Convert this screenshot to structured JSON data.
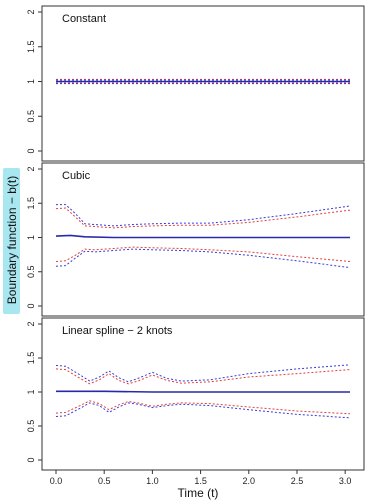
{
  "figure": {
    "ylabel": "Boundary function − b(t)",
    "xlabel": "Time (t)",
    "ylabel_highlight": "#a8e6f0",
    "colors": {
      "red": "#e0403a",
      "blue": "#3a3ad8",
      "solid": "#2a2aa8",
      "axis": "#333333"
    }
  },
  "chart_data": [
    {
      "type": "line",
      "title": "Constant",
      "xlim": [
        -0.1,
        3.05
      ],
      "ylim": [
        0,
        2
      ],
      "yticks": [
        "0",
        "0.5",
        "1",
        "1.5",
        "2"
      ],
      "xticks": [],
      "series": [
        {
          "style": "solid",
          "color": "blue",
          "x": [
            0,
            3.05
          ],
          "y": [
            1.0,
            1.0
          ]
        },
        {
          "style": "dashed",
          "color": "red",
          "x": [
            0,
            3.05
          ],
          "y": [
            1.03,
            1.03
          ]
        },
        {
          "style": "dashed",
          "color": "blue",
          "x": [
            0,
            3.05
          ],
          "y": [
            1.02,
            1.02
          ]
        },
        {
          "style": "dashed",
          "color": "red",
          "x": [
            0,
            3.05
          ],
          "y": [
            0.98,
            0.98
          ]
        },
        {
          "style": "dashed",
          "color": "blue",
          "x": [
            0,
            3.05
          ],
          "y": [
            0.97,
            0.97
          ]
        }
      ]
    },
    {
      "type": "line",
      "title": "Cubic",
      "xlim": [
        -0.1,
        3.05
      ],
      "ylim": [
        0,
        2
      ],
      "yticks": [
        "0",
        "0.5",
        "1",
        "1.5",
        "2"
      ],
      "xticks": [],
      "series": [
        {
          "style": "solid",
          "color": "blue",
          "x": [
            0,
            0.15,
            0.3,
            0.6,
            1.0,
            1.6,
            2.0,
            3.05
          ],
          "y": [
            1.02,
            1.03,
            1.01,
            1.0,
            1.0,
            1.0,
            1.0,
            1.0
          ]
        },
        {
          "style": "dashed",
          "color": "red",
          "x": [
            0,
            0.1,
            0.2,
            0.3,
            0.4,
            0.6,
            0.8,
            1.0,
            1.3,
            1.6,
            2.0,
            2.5,
            3.05
          ],
          "y": [
            1.42,
            1.43,
            1.3,
            1.17,
            1.16,
            1.14,
            1.16,
            1.17,
            1.18,
            1.18,
            1.22,
            1.3,
            1.4
          ]
        },
        {
          "style": "dashed",
          "color": "blue",
          "x": [
            0,
            0.1,
            0.2,
            0.3,
            0.4,
            0.6,
            0.8,
            1.0,
            1.3,
            1.6,
            2.0,
            2.5,
            3.05
          ],
          "y": [
            1.48,
            1.48,
            1.35,
            1.2,
            1.19,
            1.17,
            1.19,
            1.2,
            1.21,
            1.21,
            1.26,
            1.35,
            1.46
          ]
        },
        {
          "style": "dashed",
          "color": "red",
          "x": [
            0,
            0.1,
            0.2,
            0.3,
            0.4,
            0.6,
            0.8,
            1.0,
            1.3,
            1.6,
            2.0,
            2.5,
            3.05
          ],
          "y": [
            0.65,
            0.66,
            0.74,
            0.83,
            0.82,
            0.84,
            0.86,
            0.85,
            0.84,
            0.82,
            0.79,
            0.72,
            0.65
          ]
        },
        {
          "style": "dashed",
          "color": "blue",
          "x": [
            0,
            0.1,
            0.2,
            0.3,
            0.4,
            0.6,
            0.8,
            1.0,
            1.3,
            1.6,
            2.0,
            2.5,
            3.05
          ],
          "y": [
            0.58,
            0.59,
            0.7,
            0.8,
            0.79,
            0.81,
            0.83,
            0.82,
            0.81,
            0.79,
            0.74,
            0.66,
            0.56
          ]
        }
      ]
    },
    {
      "type": "line",
      "title": "Linear spline − 2 knots",
      "xlim": [
        -0.1,
        3.05
      ],
      "ylim": [
        0,
        2
      ],
      "yticks": [
        "0",
        "0.5",
        "1",
        "1.5",
        "2"
      ],
      "xticks": [
        "0.0",
        "0.5",
        "1.0",
        "1.5",
        "2.0",
        "2.5",
        "3.0"
      ],
      "series": [
        {
          "style": "solid",
          "color": "blue",
          "x": [
            0,
            0.5,
            1.0,
            1.6,
            2.0,
            3.05
          ],
          "y": [
            1.01,
            1.01,
            1.0,
            1.0,
            1.0,
            1.0
          ]
        },
        {
          "style": "dashed",
          "color": "red",
          "x": [
            0,
            0.1,
            0.25,
            0.35,
            0.45,
            0.55,
            0.65,
            0.75,
            0.85,
            1.0,
            1.15,
            1.3,
            1.6,
            2.0,
            2.5,
            3.05
          ],
          "y": [
            1.34,
            1.33,
            1.2,
            1.12,
            1.18,
            1.27,
            1.17,
            1.12,
            1.16,
            1.25,
            1.17,
            1.13,
            1.15,
            1.22,
            1.27,
            1.33
          ]
        },
        {
          "style": "dashed",
          "color": "blue",
          "x": [
            0,
            0.1,
            0.25,
            0.35,
            0.45,
            0.55,
            0.65,
            0.75,
            0.85,
            1.0,
            1.15,
            1.3,
            1.6,
            2.0,
            2.5,
            3.05
          ],
          "y": [
            1.39,
            1.38,
            1.25,
            1.16,
            1.22,
            1.31,
            1.21,
            1.15,
            1.2,
            1.29,
            1.2,
            1.16,
            1.18,
            1.27,
            1.34,
            1.4
          ]
        },
        {
          "style": "dashed",
          "color": "red",
          "x": [
            0,
            0.1,
            0.25,
            0.35,
            0.45,
            0.55,
            0.65,
            0.75,
            0.85,
            1.0,
            1.15,
            1.3,
            1.6,
            2.0,
            2.5,
            3.05
          ],
          "y": [
            0.69,
            0.7,
            0.8,
            0.87,
            0.83,
            0.74,
            0.81,
            0.86,
            0.84,
            0.79,
            0.82,
            0.84,
            0.83,
            0.78,
            0.72,
            0.68
          ]
        },
        {
          "style": "dashed",
          "color": "blue",
          "x": [
            0,
            0.1,
            0.25,
            0.35,
            0.45,
            0.55,
            0.65,
            0.75,
            0.85,
            1.0,
            1.15,
            1.3,
            1.6,
            2.0,
            2.5,
            3.05
          ],
          "y": [
            0.64,
            0.65,
            0.76,
            0.84,
            0.8,
            0.7,
            0.78,
            0.84,
            0.82,
            0.77,
            0.8,
            0.82,
            0.8,
            0.74,
            0.67,
            0.62
          ]
        }
      ]
    }
  ]
}
